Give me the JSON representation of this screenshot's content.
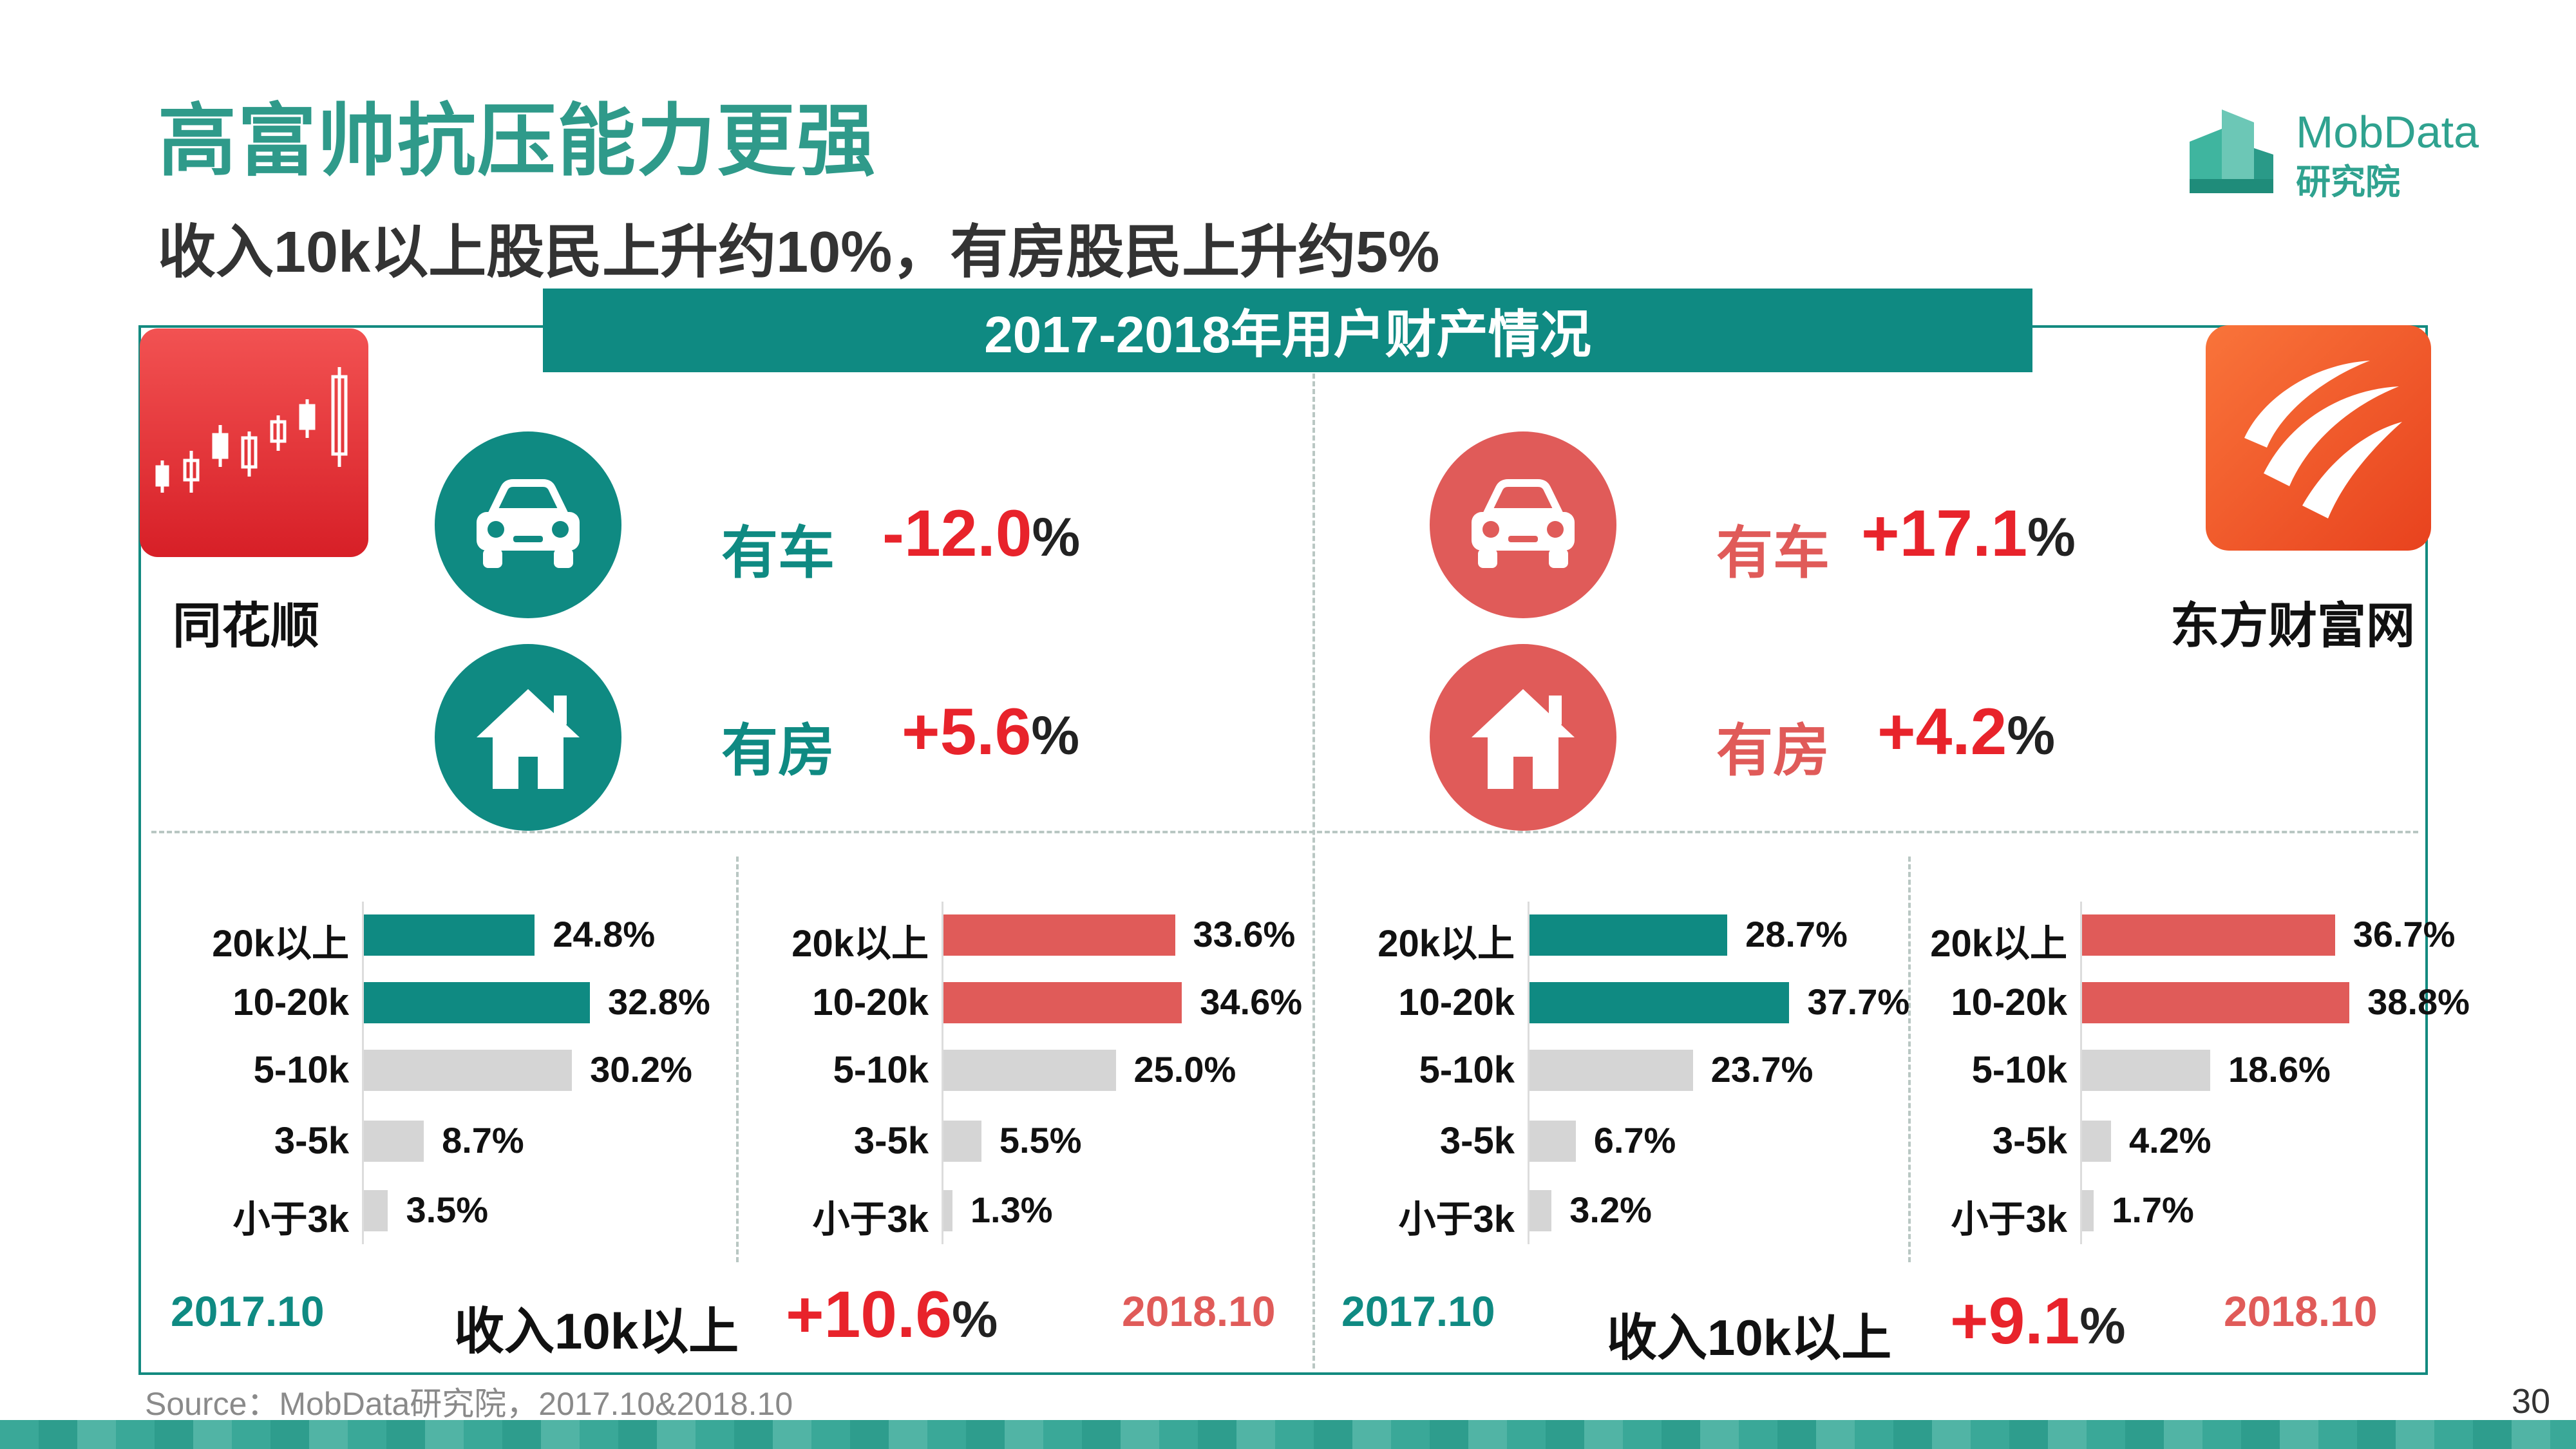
{
  "header": {
    "title": "高富帅抗压能力更强",
    "subtitle": "收入10k以上股民上升约10%，有房股民上升约5%"
  },
  "logo": {
    "name": "MobData",
    "sub": "研究院"
  },
  "banner": "2017-2018年用户财产情况",
  "colors": {
    "teal": "#0f8a82",
    "red": "#e05b59",
    "gray": "#d5d5d5",
    "accent": "#e8232b"
  },
  "left": {
    "app": "同花顺",
    "car_label": "有车",
    "car_value": "-12.0",
    "car_pct": "%",
    "house_label": "有房",
    "house_value": "+5.6",
    "house_pct": "%",
    "date_start": "2017.10",
    "date_end": "2018.10",
    "summary_label": "收入10k以上",
    "summary_value": "+10.6",
    "summary_pct": "%"
  },
  "right": {
    "app": "东方财富网",
    "car_label": "有车",
    "car_value": "+17.1",
    "car_pct": "%",
    "house_label": "有房",
    "house_value": "+4.2",
    "house_pct": "%",
    "date_start": "2017.10",
    "date_end": "2018.10",
    "summary_label": "收入10k以上",
    "summary_value": "+9.1",
    "summary_pct": "%"
  },
  "chart_data": [
    {
      "type": "bar",
      "orientation": "horizontal",
      "title": "同花顺 2017.10",
      "categories": [
        "20k以上",
        "10-20k",
        "5-10k",
        "3-5k",
        "小于3k"
      ],
      "values": [
        24.8,
        32.8,
        30.2,
        8.7,
        3.5
      ],
      "labels": [
        "24.8%",
        "32.8%",
        "30.2%",
        "8.7%",
        "3.5%"
      ],
      "xlim": [
        0,
        40
      ]
    },
    {
      "type": "bar",
      "orientation": "horizontal",
      "title": "同花顺 2018.10",
      "categories": [
        "20k以上",
        "10-20k",
        "5-10k",
        "3-5k",
        "小于3k"
      ],
      "values": [
        33.6,
        34.6,
        25.0,
        5.5,
        1.3
      ],
      "labels": [
        "33.6%",
        "34.6%",
        "25.0%",
        "5.5%",
        "1.3%"
      ],
      "xlim": [
        0,
        40
      ]
    },
    {
      "type": "bar",
      "orientation": "horizontal",
      "title": "东方财富网 2017.10",
      "categories": [
        "20k以上",
        "10-20k",
        "5-10k",
        "3-5k",
        "小于3k"
      ],
      "values": [
        28.7,
        37.7,
        23.7,
        6.7,
        3.2
      ],
      "labels": [
        "28.7%",
        "37.7%",
        "23.7%",
        "6.7%",
        "3.2%"
      ],
      "xlim": [
        0,
        40
      ]
    },
    {
      "type": "bar",
      "orientation": "horizontal",
      "title": "东方财富网 2018.10",
      "categories": [
        "20k以上",
        "10-20k",
        "5-10k",
        "3-5k",
        "小于3k"
      ],
      "values": [
        36.7,
        38.8,
        18.6,
        4.2,
        1.7
      ],
      "labels": [
        "36.7%",
        "38.8%",
        "18.6%",
        "4.2%",
        "1.7%"
      ],
      "xlim": [
        0,
        40
      ]
    }
  ],
  "footer": {
    "source": "Source：MobData研究院，2017.10&2018.10",
    "page": "30"
  }
}
